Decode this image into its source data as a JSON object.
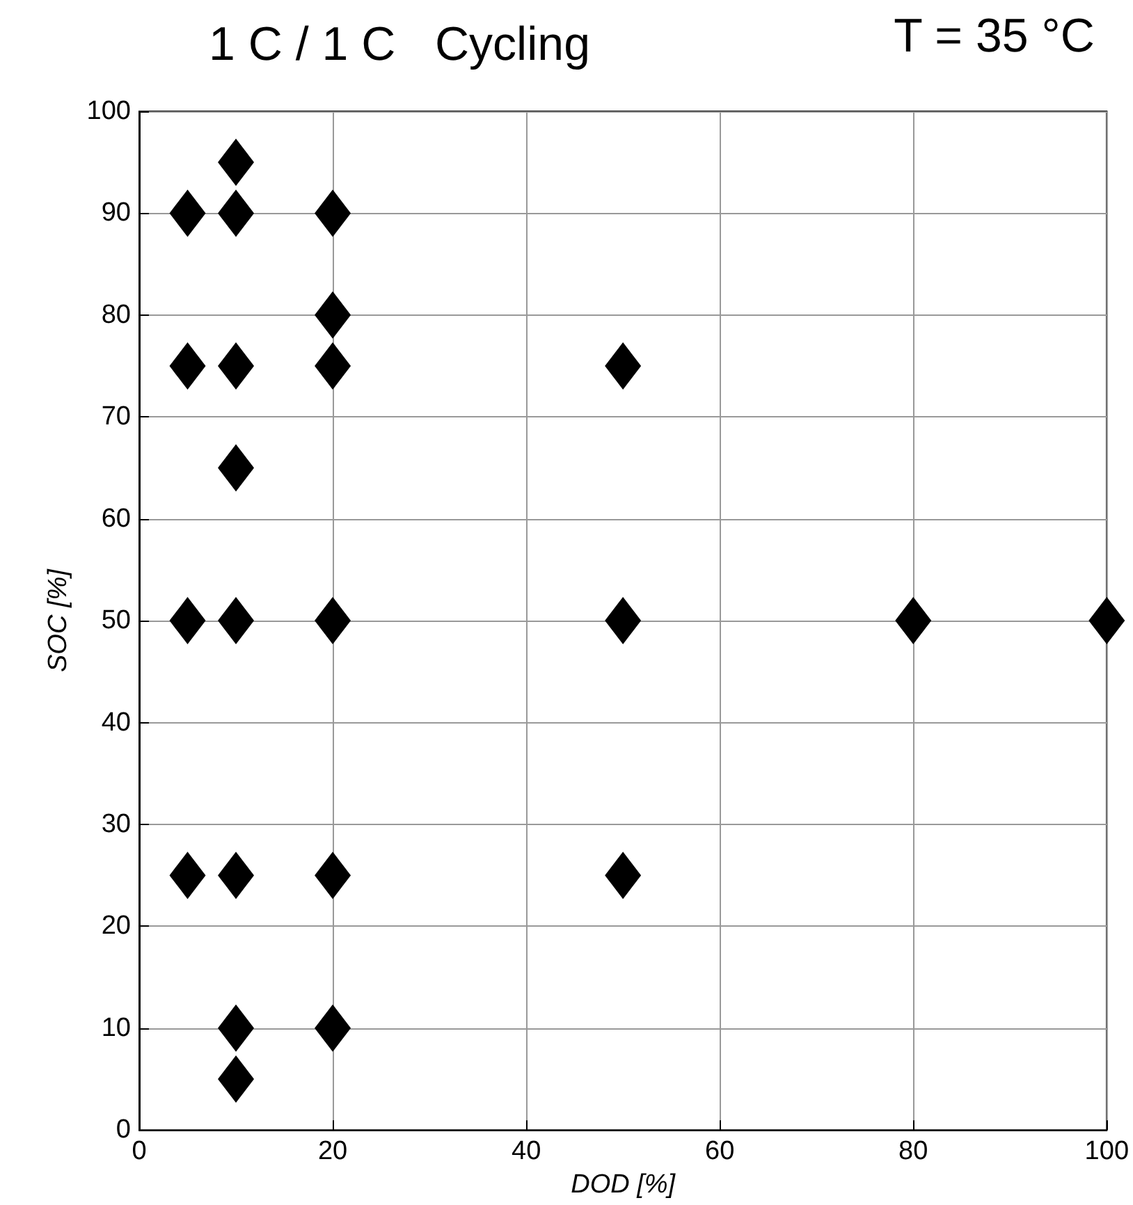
{
  "chart_data": {
    "type": "scatter",
    "title": "1 C / 1 C   Cycling",
    "annotations": [
      "T = 35 °C"
    ],
    "xlabel": "DOD [%]",
    "ylabel": "SOC [%]",
    "series": [
      {
        "color": "#000000",
        "x": [
          5,
          5,
          5,
          5,
          10,
          10,
          10,
          10,
          10,
          10,
          10,
          10,
          20,
          20,
          20,
          20,
          20,
          20,
          50,
          50,
          50,
          80,
          100
        ],
        "values": [
          90,
          75,
          50,
          25,
          95,
          90,
          75,
          65,
          50,
          25,
          10,
          5,
          90,
          80,
          75,
          50,
          25,
          10,
          75,
          50,
          25,
          50,
          50
        ]
      }
    ],
    "xlim": [
      0,
      100
    ],
    "xticks": [
      0,
      20,
      40,
      60,
      80,
      100
    ],
    "ylim": [
      0,
      100
    ],
    "yticks": [
      0,
      10,
      20,
      30,
      40,
      50,
      60,
      70,
      80,
      90,
      100
    ],
    "grid": true,
    "marker": "diamond"
  }
}
